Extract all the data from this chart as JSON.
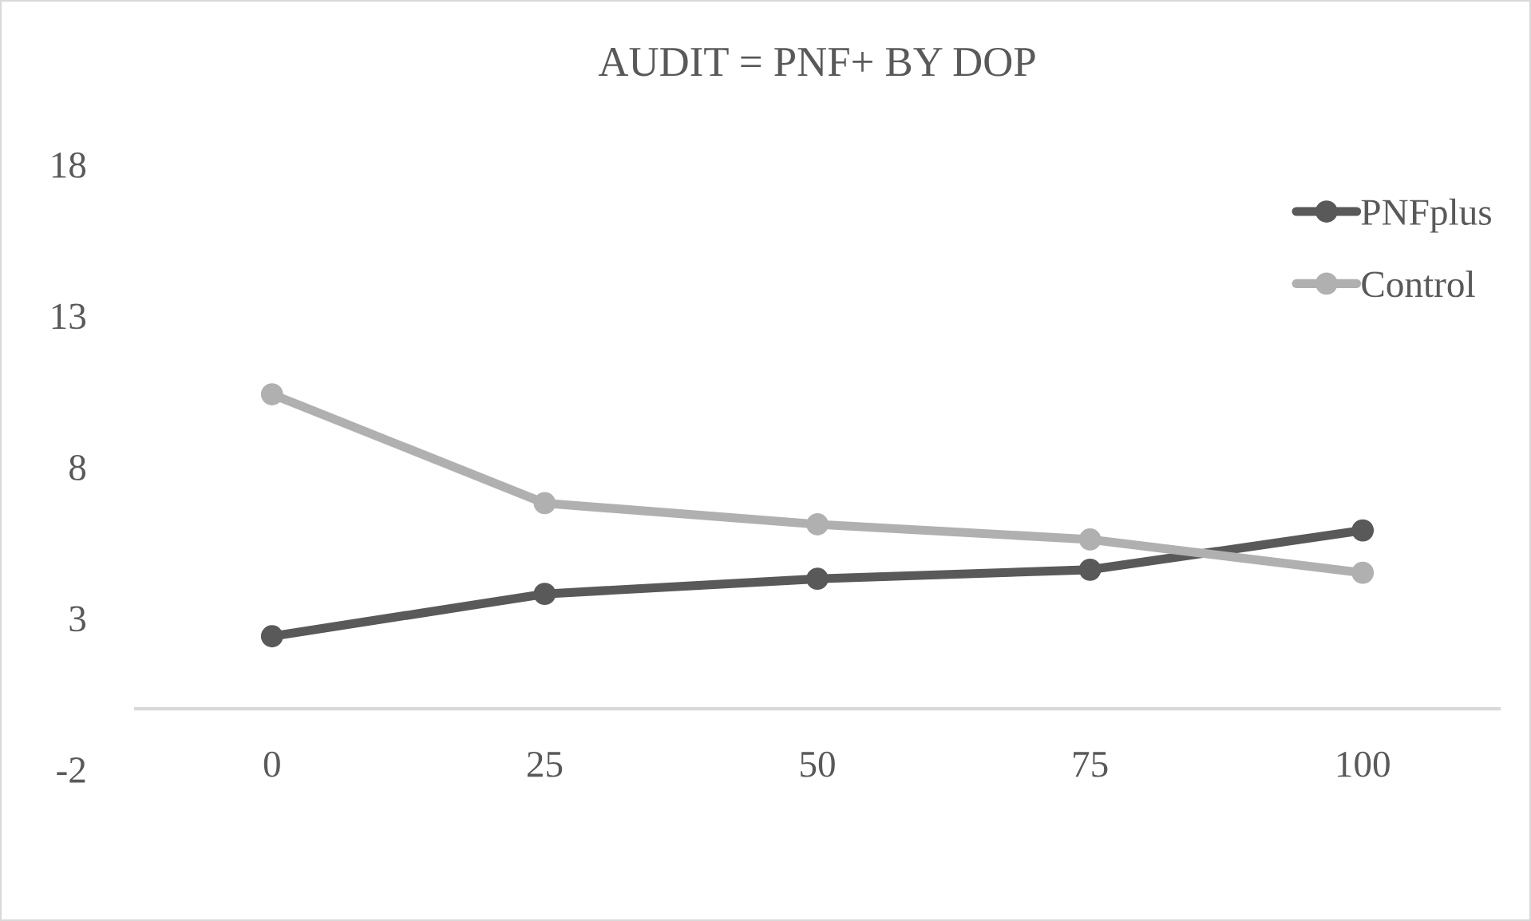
{
  "chart_data": {
    "type": "line",
    "title": "AUDIT = PNF+ BY DOP",
    "categories": [
      "0",
      "25",
      "50",
      "75",
      "100"
    ],
    "series": [
      {
        "name": "PNFplus",
        "color": "#595959",
        "values": [
          2.4,
          3.8,
          4.3,
          4.6,
          5.9
        ]
      },
      {
        "name": "Control",
        "color": "#b0b0b0",
        "values": [
          10.4,
          6.8,
          6.1,
          5.6,
          4.5
        ]
      }
    ],
    "ylim": [
      -2,
      18
    ],
    "yticks": [
      -2,
      3,
      8,
      13,
      18
    ],
    "grid": false,
    "legend": "top right",
    "marker": "circle",
    "line_style": "solid"
  }
}
